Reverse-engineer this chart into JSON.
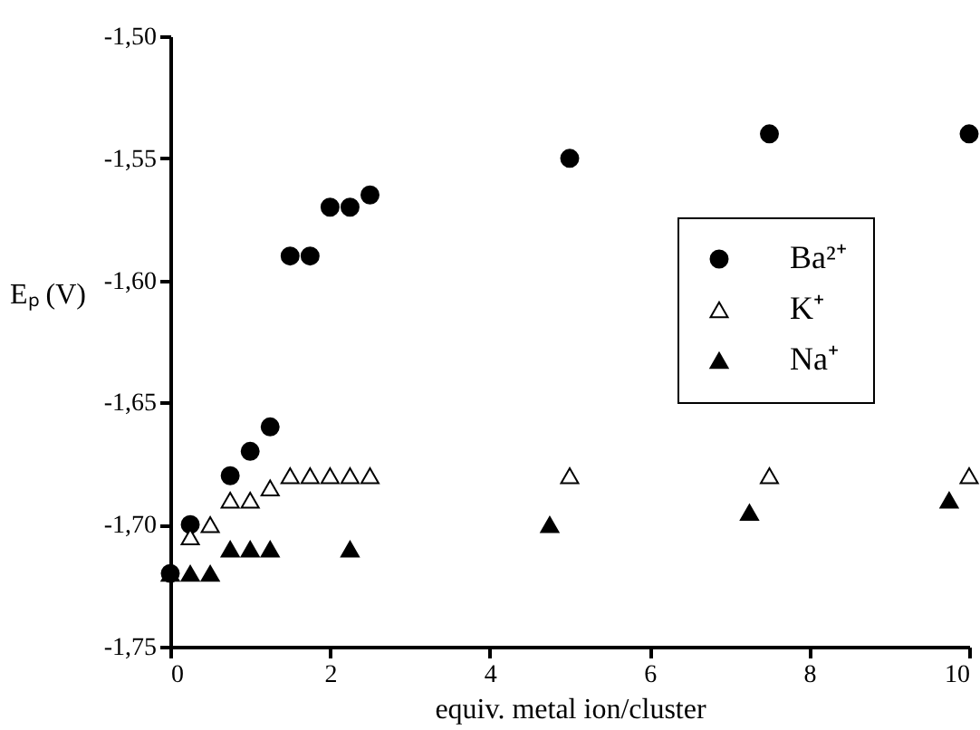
{
  "chart_data": {
    "type": "scatter",
    "xlabel": "equiv. metal ion/cluster",
    "ylabel": "Eₚ  (V)",
    "xlim": [
      0,
      10
    ],
    "xticks": [
      0,
      2,
      4,
      6,
      8,
      10
    ],
    "ylim": [
      -1.75,
      -1.5
    ],
    "yticks": [
      {
        "value": -1.75,
        "label": "-1,75"
      },
      {
        "value": -1.7,
        "label": "-1,70"
      },
      {
        "value": -1.65,
        "label": "-1,65"
      },
      {
        "value": -1.6,
        "label": "-1,60"
      },
      {
        "value": -1.55,
        "label": "-1,55"
      },
      {
        "value": -1.5,
        "label": "-1,50"
      }
    ],
    "grid": false,
    "legend": "right",
    "series": [
      {
        "name": "Ba²⁺",
        "color": "#000000",
        "marker": "circle",
        "x": [
          0,
          0.25,
          0.75,
          1,
          1.25,
          1.5,
          1.75,
          2,
          2.25,
          2.5,
          5,
          7.5,
          10
        ],
        "values": [
          -1.72,
          -1.7,
          -1.68,
          -1.67,
          -1.66,
          -1.59,
          -1.59,
          -1.57,
          -1.57,
          -1.565,
          -1.55,
          -1.54,
          -1.54
        ]
      },
      {
        "name": "K⁺",
        "color": "#ffffff",
        "marker": "triangle",
        "x": [
          0.25,
          0.5,
          0.75,
          1,
          1.25,
          1.5,
          1.75,
          2,
          2.25,
          2.5,
          5,
          7.5,
          10
        ],
        "values": [
          -1.705,
          -1.7,
          -1.69,
          -1.69,
          -1.685,
          -1.68,
          -1.68,
          -1.68,
          -1.68,
          -1.68,
          -1.68,
          -1.68,
          -1.68
        ]
      },
      {
        "name": "Na⁺",
        "color": "#000000",
        "marker": "triangle",
        "x": [
          0,
          0.25,
          0.5,
          0.75,
          1,
          1.25,
          2.25,
          4.75,
          7.25,
          9.75
        ],
        "values": [
          -1.72,
          -1.72,
          -1.72,
          -1.71,
          -1.71,
          -1.71,
          -1.71,
          -1.7,
          -1.695,
          -1.69
        ]
      }
    ]
  }
}
